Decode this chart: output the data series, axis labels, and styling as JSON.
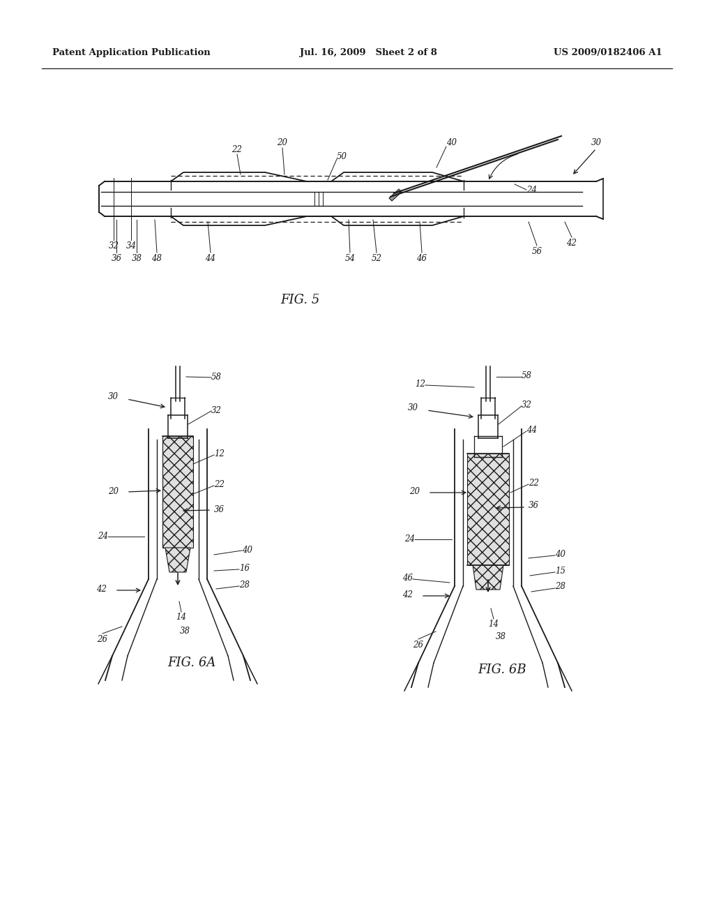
{
  "background_color": "#ffffff",
  "header_text_left": "Patent Application Publication",
  "header_text_mid": "Jul. 16, 2009   Sheet 2 of 8",
  "header_text_right": "US 2009/0182406 A1",
  "line_color": "#1a1a1a",
  "label_fontsize": 8.5,
  "caption_fontsize": 13
}
